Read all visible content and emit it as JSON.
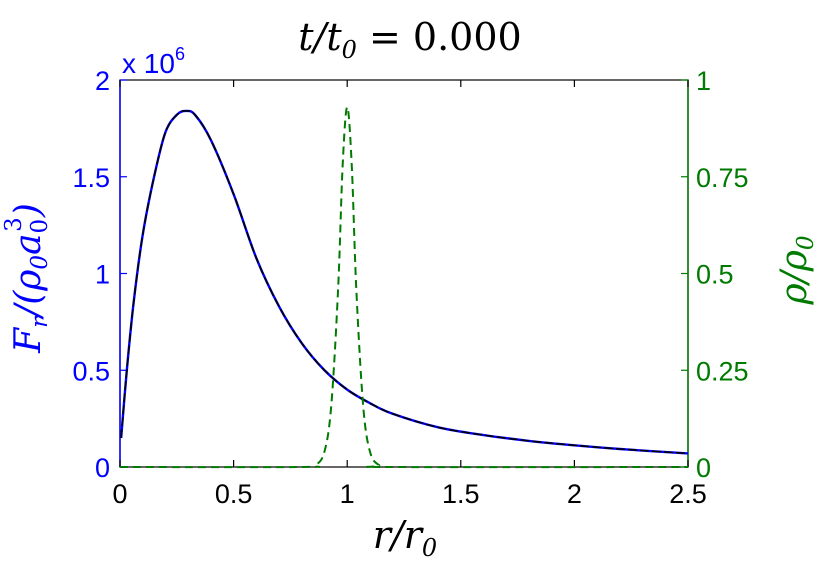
{
  "chart_data": {
    "type": "line",
    "title_prefix": "t/t",
    "title_sub": "0",
    "title_value": " = 0.000",
    "xlabel_main": "r/r",
    "xlabel_sub": "0",
    "ylabel_left": {
      "text_a": "F",
      "text_b": "r",
      "text_c": "/(ρ",
      "text_d": "0",
      "text_e": "a",
      "text_f": "0",
      "text_g": "3",
      "text_h": ")"
    },
    "ylabel_right": {
      "text_a": "ρ/ρ",
      "text_b": "0"
    },
    "multiplier_base": "x 10",
    "multiplier_exp": "6",
    "xlim": [
      0,
      2.5
    ],
    "ylim_left": [
      0,
      2000000
    ],
    "ylim_right": [
      0,
      1
    ],
    "x_ticks": [
      "0",
      "0.5",
      "1",
      "1.5",
      "2",
      "2.5"
    ],
    "x_tick_values": [
      0,
      0.5,
      1,
      1.5,
      2,
      2.5
    ],
    "y_left_ticks": [
      "0",
      "0.5",
      "1",
      "1.5",
      "2"
    ],
    "y_left_tick_values": [
      0,
      500000,
      1000000,
      1500000,
      2000000
    ],
    "y_right_ticks": [
      "0",
      "0.25",
      "0.5",
      "0.75",
      "1"
    ],
    "y_right_tick_values": [
      0,
      0.25,
      0.5,
      0.75,
      1
    ],
    "colors": {
      "left_axis": "#0000ff",
      "right_axis": "#007a00",
      "black_curve": "#000000"
    },
    "series": [
      {
        "axis": "left",
        "style": "solid-blue-black",
        "x": [
          0.005,
          0.03,
          0.06,
          0.1,
          0.15,
          0.2,
          0.25,
          0.29,
          0.33,
          0.4,
          0.5,
          0.6,
          0.7,
          0.8,
          0.9,
          1.0,
          1.1,
          1.2,
          1.4,
          1.6,
          1.8,
          2.0,
          2.2,
          2.5
        ],
        "values": [
          150000,
          500000,
          850000,
          1200000,
          1500000,
          1730000,
          1820000,
          1840000,
          1820000,
          1690000,
          1410000,
          1080000,
          830000,
          640000,
          500000,
          400000,
          330000,
          275000,
          205000,
          165000,
          135000,
          112000,
          93000,
          70000
        ]
      },
      {
        "axis": "right",
        "style": "dashed-green",
        "x": [
          0,
          0.8,
          0.86,
          0.9,
          0.93,
          0.96,
          0.98,
          1.0,
          1.02,
          1.04,
          1.07,
          1.1,
          1.14,
          1.2,
          2.5
        ],
        "values": [
          0,
          0,
          0.005,
          0.04,
          0.16,
          0.46,
          0.78,
          0.93,
          0.78,
          0.46,
          0.16,
          0.04,
          0.005,
          0,
          0
        ]
      }
    ]
  }
}
